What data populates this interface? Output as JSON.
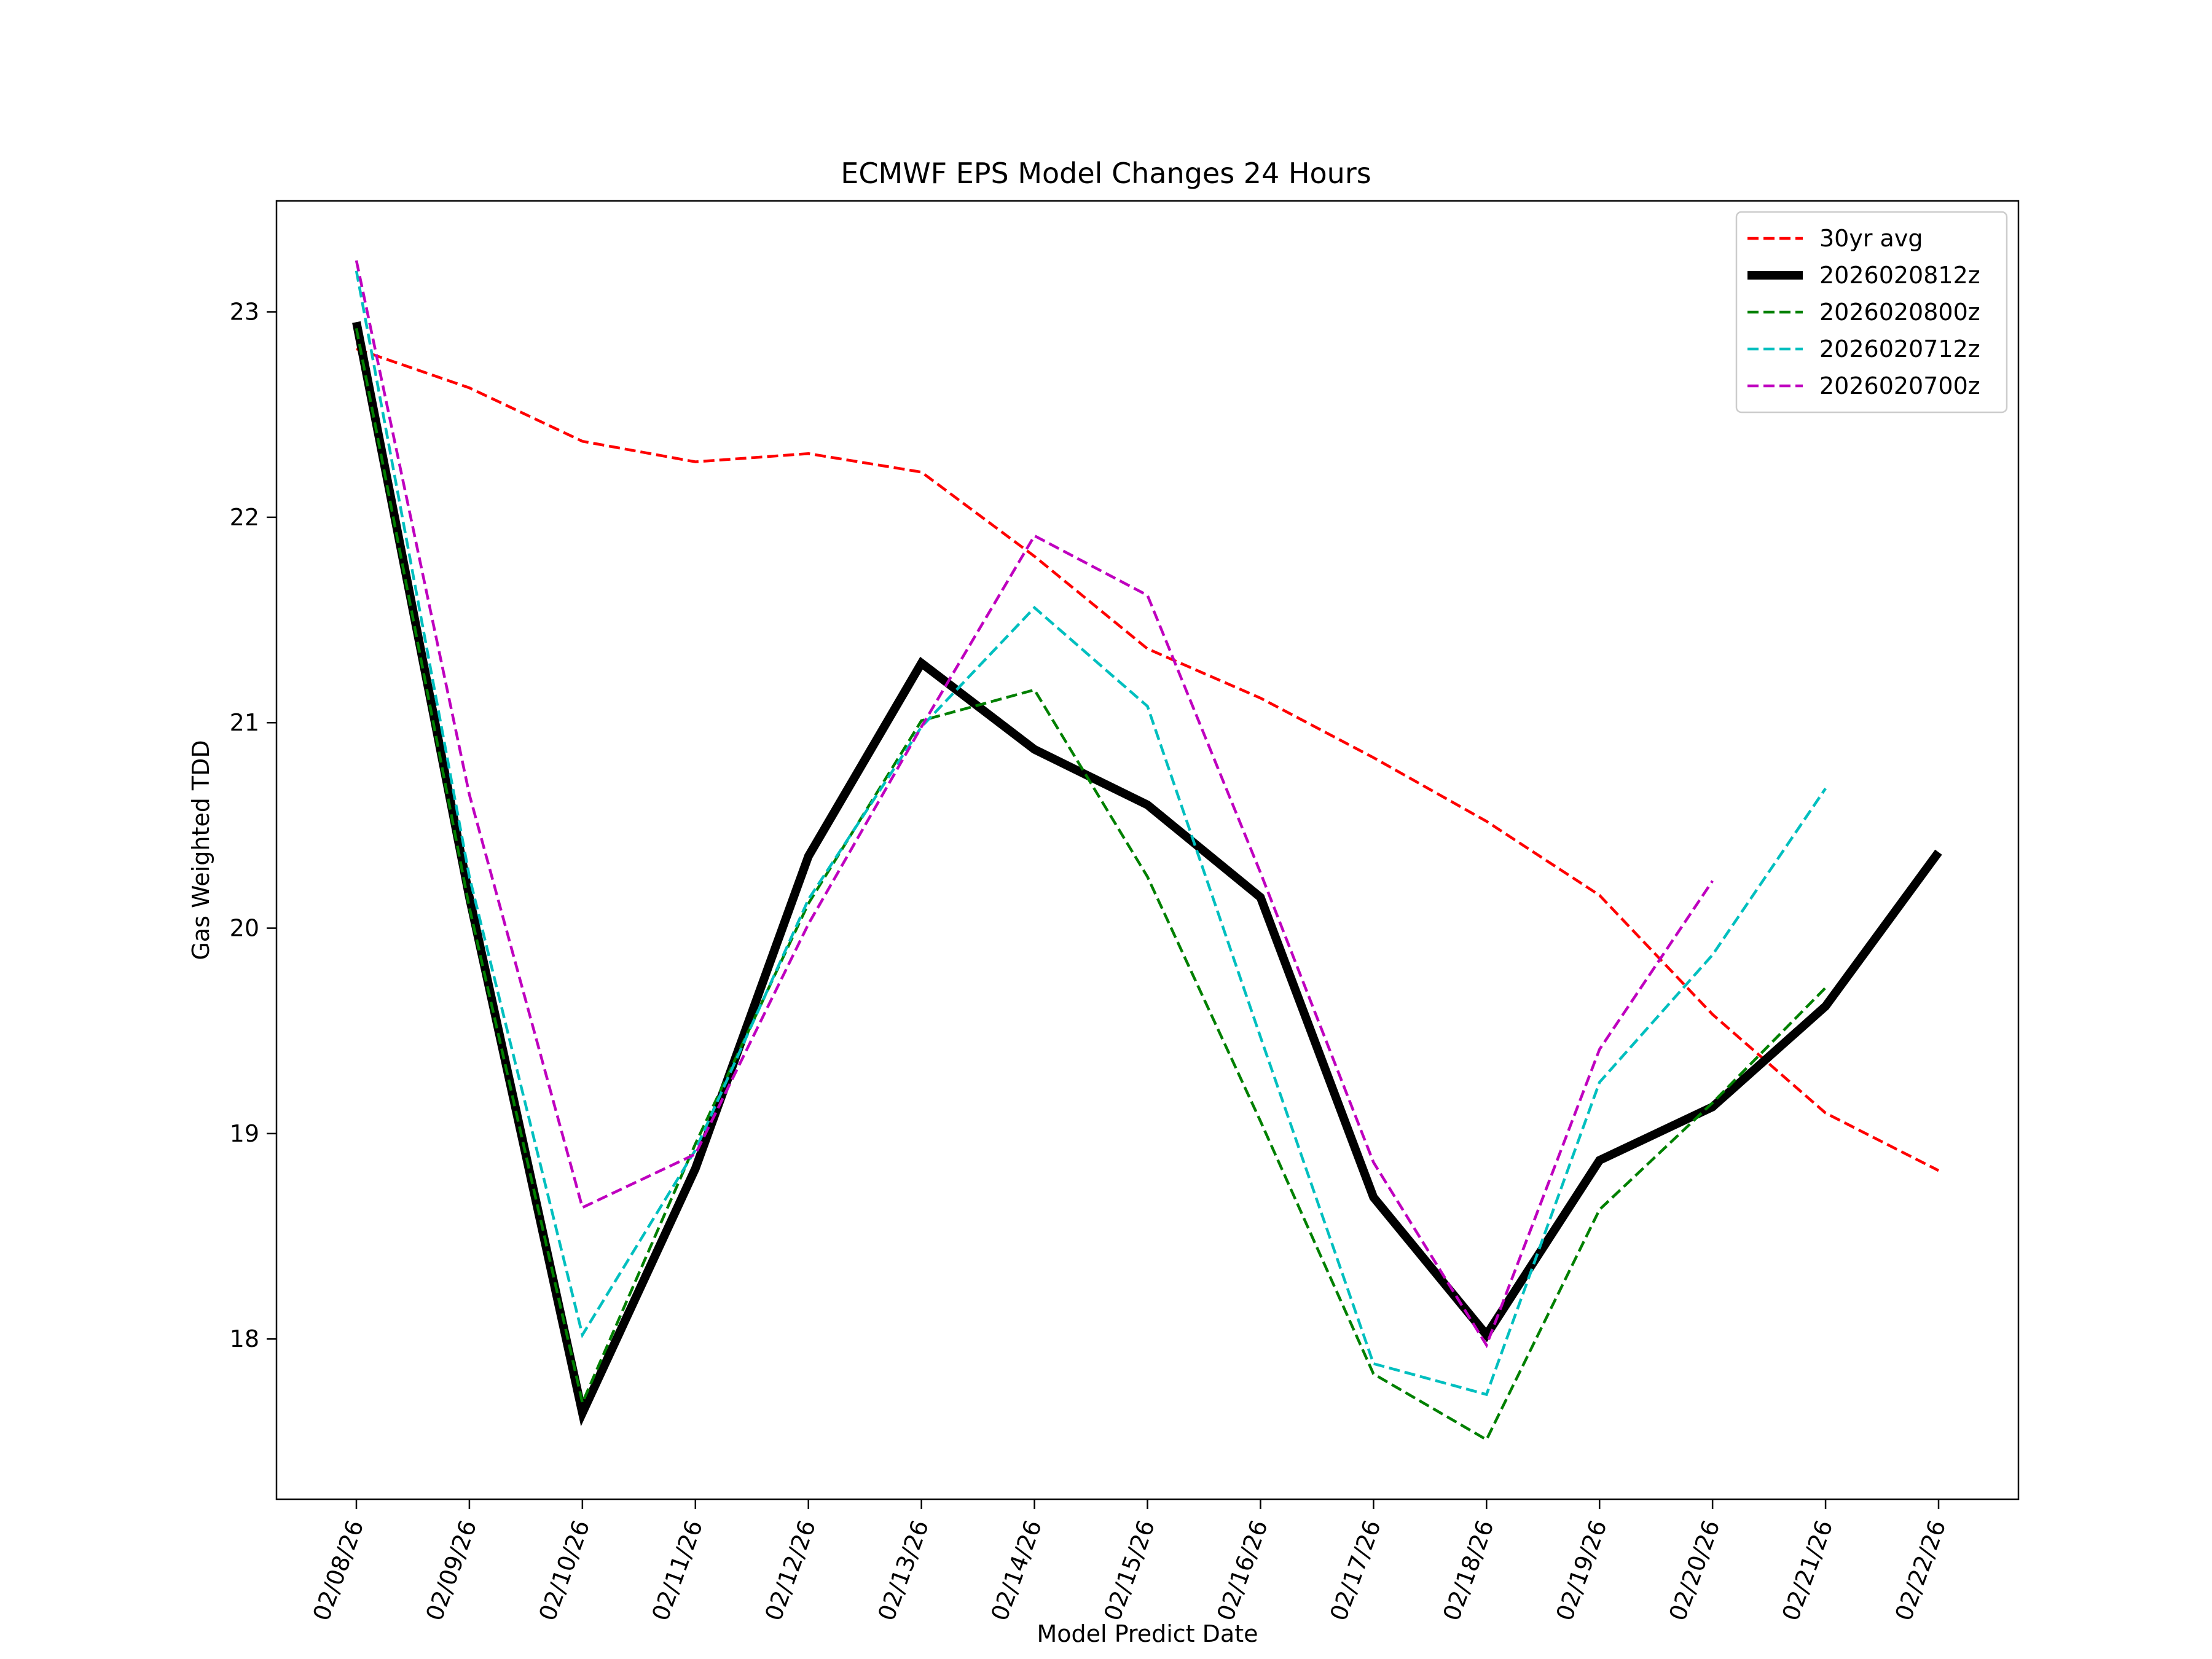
{
  "chart_data": {
    "type": "line",
    "title": "ECMWF EPS Model Changes 24 Hours",
    "xlabel": "Model Predict Date",
    "ylabel": "Gas Weighted TDD",
    "categories": [
      "02/08/26",
      "02/09/26",
      "02/10/26",
      "02/11/26",
      "02/12/26",
      "02/13/26",
      "02/14/26",
      "02/15/26",
      "02/16/26",
      "02/17/26",
      "02/18/26",
      "02/19/26",
      "02/20/26",
      "02/21/26",
      "02/22/26"
    ],
    "ylim": [
      17.22,
      23.54
    ],
    "yticks": [
      18,
      19,
      20,
      21,
      22,
      23
    ],
    "grid": false,
    "legend_position": "top-right",
    "series": [
      {
        "name": "30yr avg",
        "color": "#ff0000",
        "style": "dashed",
        "values": [
          22.82,
          22.63,
          22.37,
          22.27,
          22.31,
          22.22,
          21.81,
          21.36,
          21.12,
          20.83,
          20.52,
          20.16,
          19.58,
          19.1,
          18.82
        ]
      },
      {
        "name": "2026020812z",
        "color": "#000000",
        "style": "solid",
        "values": [
          22.95,
          20.15,
          17.64,
          18.83,
          20.35,
          21.29,
          20.87,
          20.6,
          20.15,
          18.69,
          18.02,
          18.87,
          19.13,
          19.62,
          20.37
        ]
      },
      {
        "name": "2026020800z",
        "color": "#008000",
        "style": "dashed",
        "values": [
          22.92,
          20.1,
          17.69,
          18.95,
          20.12,
          21.01,
          21.16,
          20.25,
          19.06,
          17.83,
          17.51,
          18.63,
          19.15,
          19.71,
          null
        ]
      },
      {
        "name": "2026020712z",
        "color": "#00bfbf",
        "style": "dashed",
        "values": [
          23.2,
          20.25,
          18.02,
          18.92,
          20.14,
          20.98,
          21.56,
          21.08,
          19.47,
          17.88,
          17.73,
          19.25,
          19.87,
          20.68,
          null
        ]
      },
      {
        "name": "2026020700z",
        "color": "#bf00bf",
        "style": "dashed",
        "values": [
          23.25,
          20.65,
          18.64,
          18.9,
          20.02,
          20.98,
          21.91,
          21.62,
          20.27,
          18.86,
          17.97,
          19.41,
          20.23,
          null,
          null
        ]
      }
    ]
  }
}
